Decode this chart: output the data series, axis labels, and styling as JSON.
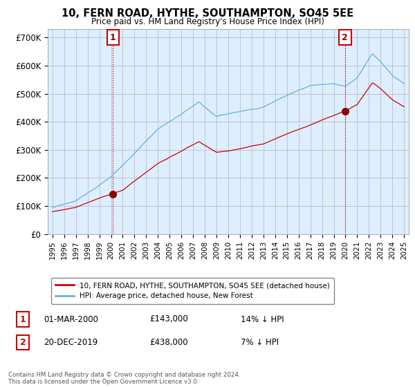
{
  "title": "10, FERN ROAD, HYTHE, SOUTHAMPTON, SO45 5EE",
  "subtitle": "Price paid vs. HM Land Registry's House Price Index (HPI)",
  "ylabel_ticks": [
    "£0",
    "£100K",
    "£200K",
    "£300K",
    "£400K",
    "£500K",
    "£600K",
    "£700K"
  ],
  "ytick_values": [
    0,
    100000,
    200000,
    300000,
    400000,
    500000,
    600000,
    700000
  ],
  "ylim": [
    0,
    730000
  ],
  "xlim_start": 1994.6,
  "xlim_end": 2025.4,
  "legend_line1": "10, FERN ROAD, HYTHE, SOUTHAMPTON, SO45 5EE (detached house)",
  "legend_line2": "HPI: Average price, detached house, New Forest",
  "point1_label": "1",
  "point1_date": "01-MAR-2000",
  "point1_price": "£143,000",
  "point1_hpi": "14% ↓ HPI",
  "point2_label": "2",
  "point2_date": "20-DEC-2019",
  "point2_price": "£438,000",
  "point2_hpi": "7% ↓ HPI",
  "footer": "Contains HM Land Registry data © Crown copyright and database right 2024.\nThis data is licensed under the Open Government Licence v3.0.",
  "hpi_color": "#6baed6",
  "price_color": "#cc0000",
  "point_color": "#8b0000",
  "bg_color": "#ffffff",
  "chart_bg": "#ddeeff",
  "grid_color": "#bbbbcc",
  "title_color": "#000000",
  "point1_x": 2000.17,
  "point1_y": 143000,
  "point2_x": 2019.96,
  "point2_y": 438000
}
